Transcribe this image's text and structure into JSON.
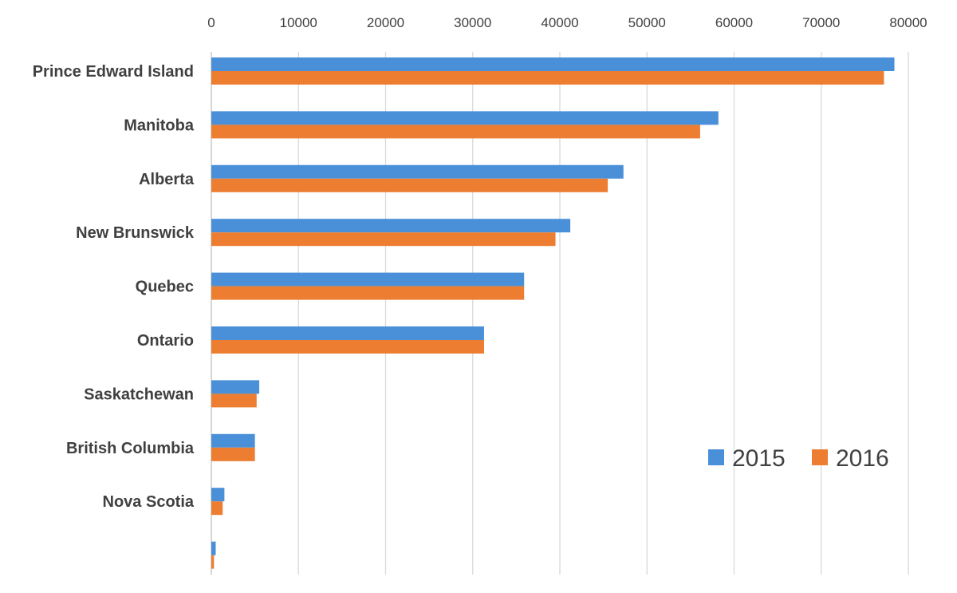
{
  "chart_data": {
    "type": "bar",
    "orientation": "horizontal",
    "title": "",
    "xlabel": "",
    "ylabel": "",
    "xlim": [
      0,
      80000
    ],
    "x_ticks": [
      "0",
      "10000",
      "20000",
      "30000",
      "40000",
      "50000",
      "60000",
      "70000",
      "80000"
    ],
    "categories": [
      "Prince Edward Island",
      "Manitoba",
      "Alberta",
      "New Brunswick",
      "Quebec",
      "Ontario",
      "Saskatchewan",
      "British Columbia",
      "Nova Scotia",
      ""
    ],
    "series": [
      {
        "name": "2015",
        "color": "#4a90d9",
        "values": [
          78400,
          58200,
          47300,
          41200,
          35900,
          31300,
          5500,
          5000,
          1500,
          500
        ]
      },
      {
        "name": "2016",
        "color": "#ed7d31",
        "values": [
          77200,
          56100,
          45500,
          39500,
          35900,
          31300,
          5200,
          5000,
          1300,
          300
        ]
      }
    ],
    "grid": "vertical",
    "legend_placement": "bottom-right"
  }
}
